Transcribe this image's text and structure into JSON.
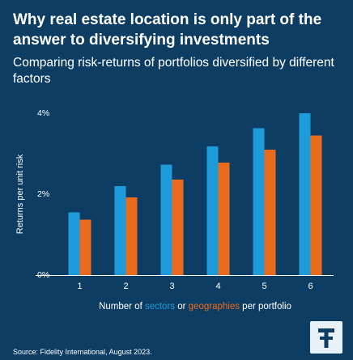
{
  "title": "Why real estate location is only part of the answer to diversifying investments",
  "subtitle": "Comparing risk-returns of portfolios diversified by different factors",
  "source": "Source: Fidelity International, August 2023.",
  "colors": {
    "background": "#0e3d63",
    "sectors": "#1e9bd9",
    "geographies": "#ea6b1e",
    "axis": "#ffffff"
  },
  "icons": {
    "logo": "fidelity-logo-icon"
  },
  "chart_data": {
    "type": "bar",
    "categories": [
      "1",
      "2",
      "3",
      "4",
      "5",
      "6"
    ],
    "series": [
      {
        "name": "sectors",
        "values": [
          1.55,
          2.2,
          2.73,
          3.18,
          3.63,
          4.0
        ]
      },
      {
        "name": "geographies",
        "values": [
          1.37,
          1.92,
          2.36,
          2.78,
          3.1,
          3.45
        ]
      }
    ],
    "ylabel": "Returns per unit risk",
    "xlabel_parts": [
      "Number of ",
      "sectors",
      " or ",
      "geographies",
      " per portfolio"
    ],
    "yticks": [
      0,
      2,
      4
    ],
    "ytick_labels": [
      "0%",
      "2%",
      "4%"
    ],
    "ylim": [
      0,
      4
    ],
    "grid": false
  }
}
